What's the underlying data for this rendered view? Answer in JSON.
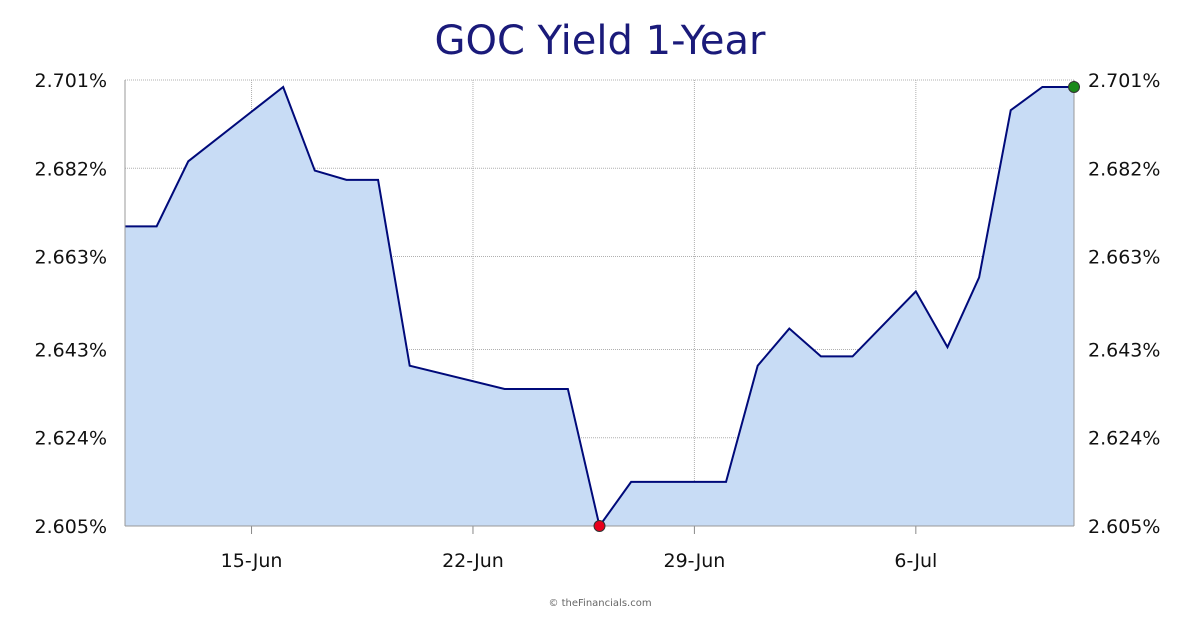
{
  "credit": "© theFinancials.com",
  "chart_data": {
    "type": "area",
    "title": "GOC Yield 1-Year",
    "xlabel": "",
    "ylabel": "",
    "ylim": [
      2.605,
      2.701
    ],
    "y_ticks": [
      "2.605%",
      "2.624%",
      "2.643%",
      "2.663%",
      "2.682%",
      "2.701%"
    ],
    "y_tick_values": [
      2.605,
      2.624,
      2.643,
      2.663,
      2.682,
      2.701
    ],
    "x_ticks": [
      "15-Jun",
      "22-Jun",
      "29-Jun",
      "6-Jul"
    ],
    "x_tick_dates": [
      "06-15",
      "06-22",
      "06-29",
      "07-06"
    ],
    "xlim": [
      "06-11",
      "07-11"
    ],
    "dates": [
      "06-11",
      "06-12",
      "06-13",
      "06-16",
      "06-17",
      "06-18",
      "06-19",
      "06-20",
      "06-23",
      "06-24",
      "06-25",
      "06-26",
      "06-27",
      "06-30",
      "07-01",
      "07-02",
      "07-03",
      "07-04",
      "07-06",
      "07-07",
      "07-08",
      "07-09",
      "07-10",
      "07-11"
    ],
    "values": [
      2.6695,
      2.6695,
      2.6835,
      2.6995,
      2.6815,
      2.6795,
      2.6795,
      2.6395,
      2.6345,
      2.6345,
      2.6345,
      2.605,
      2.6145,
      2.6145,
      2.6395,
      2.6475,
      2.6415,
      2.6415,
      2.6555,
      2.6435,
      2.6585,
      2.6945,
      2.6995,
      2.6995
    ],
    "min_marker": {
      "date": "06-26",
      "value": 2.605,
      "color": "#e8001c"
    },
    "max_marker": {
      "date": "07-11",
      "value": 2.6995,
      "color": "#1a8a1a"
    },
    "colors": {
      "line": "#000a7a",
      "fill": "#c8dcf5",
      "title": "#1a1a7a",
      "grid": "#b0b0b0"
    },
    "grid": true,
    "legend": "none"
  }
}
